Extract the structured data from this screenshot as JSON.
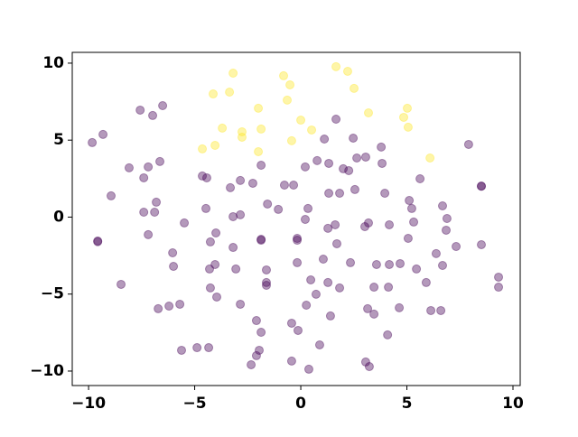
{
  "chart_data": {
    "type": "scatter",
    "xlim": [
      -10.77,
      10.34
    ],
    "ylim": [
      -10.94,
      10.7
    ],
    "xticks": [
      {
        "value": -10,
        "label": "−10"
      },
      {
        "value": -5,
        "label": "−5"
      },
      0,
      5,
      10
    ],
    "yticks": [
      {
        "value": -10,
        "label": "−10"
      },
      {
        "value": -5,
        "label": "−5"
      },
      0,
      5,
      10
    ],
    "alpha": 0.4,
    "series": [
      {
        "color": "#fde725",
        "x": [
          -3.19,
          1.66,
          2.21,
          -0.81,
          -0.51,
          -4.13,
          -3.36,
          2.51,
          -0.64,
          5.02,
          -2.0,
          3.19,
          4.85,
          -3.7,
          -1.87,
          0.0,
          5.06,
          -2.77,
          0.51,
          -2.77,
          -4.04,
          -0.43,
          -4.64,
          -2.0,
          6.09
        ],
        "values": [
          9.35,
          9.77,
          9.47,
          9.18,
          8.59,
          8.0,
          8.12,
          8.36,
          7.6,
          7.07,
          7.07,
          6.77,
          6.48,
          5.78,
          5.72,
          6.3,
          5.84,
          5.54,
          5.66,
          5.19,
          4.66,
          4.96,
          4.43,
          4.25,
          3.84
        ]
      },
      {
        "color": "#440154",
        "x": [
          -9.83,
          -9.32,
          -7.57,
          -6.98,
          -6.51,
          1.66,
          2.47,
          1.11,
          3.79,
          7.91,
          -6.64,
          -8.09,
          -7.19,
          -7.4,
          -8.94,
          -4.64,
          -4.43,
          -2.85,
          -2.26,
          -1.87,
          -3.32,
          -0.77,
          -0.34,
          0.21,
          0.77,
          1.32,
          2.0,
          2.26,
          2.64,
          3.06,
          3.83,
          5.62,
          8.51,
          8.51,
          1.32,
          1.83,
          2.55,
          3.96,
          5.11,
          5.23,
          6.68,
          6.89,
          6.85,
          -6.81,
          -7.4,
          -6.89,
          -4.47,
          -1.57,
          -1.06,
          0.34,
          -3.19,
          -2.85,
          -5.49,
          0.21,
          3.19,
          3.02,
          1.62,
          1.28,
          4.17,
          5.32,
          -4.0,
          -9.57,
          -9.57,
          -7.19,
          -1.87,
          -1.87,
          -0.17,
          -0.17,
          -4.26,
          1.7,
          5.06,
          7.32,
          8.51,
          -6.04,
          -3.19,
          6.38,
          -6.0,
          -4.04,
          -4.3,
          -3.06,
          -0.17,
          1.06,
          2.34,
          3.57,
          4.17,
          4.68,
          6.68,
          5.45,
          -1.62,
          0.47,
          1.28,
          -1.62,
          -1.62,
          -8.47,
          -4.26,
          1.83,
          3.45,
          4.13,
          5.91,
          9.32,
          9.32,
          -3.96,
          0.72,
          0.26,
          -2.85,
          -5.7,
          -6.21,
          -6.72,
          3.15,
          3.45,
          4.64,
          6.13,
          6.6,
          1.4,
          -2.09,
          -0.43,
          -0.13,
          -1.87,
          4.09,
          0.89,
          -5.62,
          -4.89,
          -4.34,
          -1.96,
          -2.09,
          -0.43,
          3.06,
          3.23,
          -2.34,
          0.38
        ],
        "values": [
          4.84,
          5.37,
          6.95,
          6.6,
          7.24,
          6.36,
          5.13,
          5.07,
          4.55,
          4.72,
          3.61,
          3.2,
          3.26,
          2.55,
          1.38,
          2.67,
          2.55,
          2.38,
          2.2,
          3.37,
          1.91,
          2.08,
          2.08,
          3.26,
          3.67,
          3.49,
          3.14,
          3.02,
          3.84,
          3.9,
          3.49,
          2.49,
          2.02,
          2.0,
          1.55,
          1.55,
          1.79,
          1.55,
          1.08,
          0.56,
          0.73,
          -0.09,
          -0.85,
          0.97,
          0.32,
          0.32,
          0.56,
          0.85,
          0.5,
          0.56,
          0.03,
          0.15,
          -0.38,
          -0.15,
          -0.38,
          -0.62,
          -0.5,
          -0.73,
          -0.5,
          -0.32,
          -1.03,
          -1.55,
          -1.6,
          -1.14,
          -1.44,
          -1.5,
          -1.38,
          -1.5,
          -1.61,
          -1.73,
          -1.38,
          -1.91,
          -1.79,
          -2.32,
          -1.97,
          -2.37,
          -3.2,
          -3.08,
          -3.37,
          -3.37,
          -2.96,
          -2.73,
          -2.96,
          -3.08,
          -3.08,
          -3.02,
          -3.14,
          -3.37,
          -3.43,
          -4.08,
          -4.25,
          -4.25,
          -4.43,
          -4.37,
          -4.6,
          -4.6,
          -4.55,
          -4.55,
          -4.25,
          -3.9,
          -4.55,
          -5.19,
          -5.01,
          -5.72,
          -5.66,
          -5.66,
          -5.78,
          -5.95,
          -5.95,
          -6.3,
          -5.89,
          -6.07,
          -6.07,
          -6.42,
          -6.72,
          -6.89,
          -7.36,
          -7.48,
          -7.65,
          -8.3,
          -8.65,
          -8.48,
          -8.48,
          -8.65,
          -9.0,
          -9.35,
          -9.41,
          -9.71,
          -9.59,
          -9.88
        ]
      }
    ]
  }
}
